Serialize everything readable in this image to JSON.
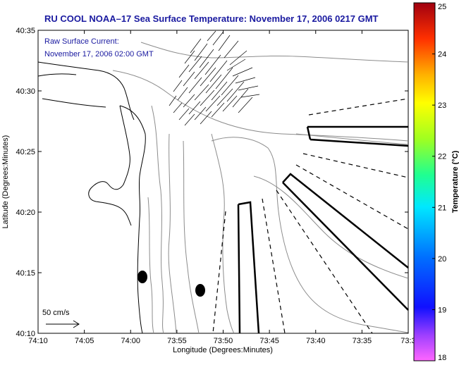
{
  "title": "RU COOL  NOAA–17  Sea Surface Temperature:  November 17, 2006 0217 GMT",
  "annotation": {
    "line1": "Raw Surface Current:",
    "line2": "November 17, 2006 02:00 GMT"
  },
  "scale_label": "50 cm/s",
  "colors": {
    "title": "#1a1aa0",
    "contour": "#8c8c8c",
    "coast": "#000000"
  },
  "chart_data": {
    "type": "map",
    "xlabel": "Longitude (Degrees:Minutes)",
    "ylabel": "Latitude (Degrees:Minutes)",
    "x_ticks": [
      "74:10",
      "74:05",
      "74:00",
      "73:55",
      "73:50",
      "73:45",
      "73:40",
      "73:35",
      "73:3"
    ],
    "y_ticks": [
      "40:35",
      "40:30",
      "40:25",
      "40:20",
      "40:15",
      "40:10"
    ],
    "colorbar": {
      "label": "Temperature (°C)",
      "range": [
        18,
        25
      ],
      "ticks": [
        "25",
        "24",
        "23",
        "22",
        "21",
        "20",
        "19",
        "18"
      ]
    }
  }
}
